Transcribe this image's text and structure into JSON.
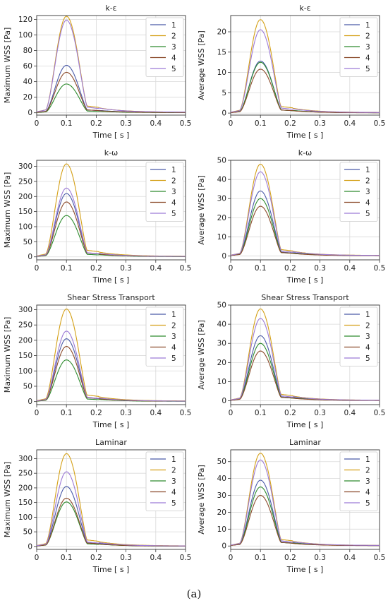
{
  "caption": "(a)",
  "colors": [
    "#4a5aa8",
    "#d4a017",
    "#2e8b2e",
    "#8b4a2a",
    "#9c7ad6"
  ],
  "chart_data": [
    {
      "type": "line",
      "title": "k-ε",
      "xlabel": "Time [ s ]",
      "ylabel": "Maximum WSS [Pa]",
      "xlim": [
        0,
        0.5
      ],
      "ylim": [
        -3,
        125
      ],
      "xticks": [
        0,
        0.1,
        0.2,
        0.3,
        0.4,
        0.5
      ],
      "yticks": [
        0,
        20,
        40,
        60,
        80,
        100,
        120
      ],
      "grid": true,
      "legend": "top-right",
      "peak_t": 0.1,
      "series": [
        {
          "name": "1",
          "peak": 61
        },
        {
          "name": "2",
          "peak": 124
        },
        {
          "name": "3",
          "peak": 37
        },
        {
          "name": "4",
          "peak": 52
        },
        {
          "name": "5",
          "peak": 119
        }
      ]
    },
    {
      "type": "line",
      "title": "k-ε",
      "xlabel": "Time [ s ]",
      "ylabel": "Average WSS [Pa]",
      "xlim": [
        0,
        0.5
      ],
      "ylim": [
        -0.5,
        24
      ],
      "xticks": [
        0,
        0.1,
        0.2,
        0.3,
        0.4,
        0.5
      ],
      "yticks": [
        0,
        5,
        10,
        15,
        20
      ],
      "grid": true,
      "legend": "top-right",
      "peak_t": 0.1,
      "series": [
        {
          "name": "1",
          "peak": 12.8
        },
        {
          "name": "2",
          "peak": 23
        },
        {
          "name": "3",
          "peak": 12.5
        },
        {
          "name": "4",
          "peak": 10.8
        },
        {
          "name": "5",
          "peak": 20.5
        }
      ]
    },
    {
      "type": "line",
      "title": "k-ω",
      "xlabel": "Time [ s ]",
      "ylabel": "Maximum WSS [Pa]",
      "xlim": [
        0,
        0.5
      ],
      "ylim": [
        -10,
        320
      ],
      "xticks": [
        0,
        0.1,
        0.2,
        0.3,
        0.4,
        0.5
      ],
      "yticks": [
        0,
        50,
        100,
        150,
        200,
        250,
        300
      ],
      "grid": true,
      "legend": "top-right",
      "peak_t": 0.1,
      "series": [
        {
          "name": "1",
          "peak": 210
        },
        {
          "name": "2",
          "peak": 308
        },
        {
          "name": "3",
          "peak": 137
        },
        {
          "name": "4",
          "peak": 182
        },
        {
          "name": "5",
          "peak": 228
        }
      ]
    },
    {
      "type": "line",
      "title": "k-ω",
      "xlabel": "Time [ s ]",
      "ylabel": "Average WSS [Pa]",
      "xlim": [
        0,
        0.5
      ],
      "ylim": [
        -2,
        50
      ],
      "xticks": [
        0,
        0.1,
        0.2,
        0.3,
        0.4,
        0.5
      ],
      "yticks": [
        0,
        10,
        20,
        30,
        40,
        50
      ],
      "grid": true,
      "legend": "top-right",
      "peak_t": 0.1,
      "series": [
        {
          "name": "1",
          "peak": 34
        },
        {
          "name": "2",
          "peak": 48
        },
        {
          "name": "3",
          "peak": 30
        },
        {
          "name": "4",
          "peak": 26
        },
        {
          "name": "5",
          "peak": 44
        }
      ]
    },
    {
      "type": "line",
      "title": "Shear Stress Transport",
      "xlabel": "Time [ s ]",
      "ylabel": "Maximum WSS [Pa]",
      "xlim": [
        0,
        0.5
      ],
      "ylim": [
        -10,
        315
      ],
      "xticks": [
        0,
        0.1,
        0.2,
        0.3,
        0.4,
        0.5
      ],
      "yticks": [
        0,
        50,
        100,
        150,
        200,
        250,
        300
      ],
      "grid": true,
      "legend": "top-right",
      "peak_t": 0.1,
      "series": [
        {
          "name": "1",
          "peak": 205
        },
        {
          "name": "2",
          "peak": 302
        },
        {
          "name": "3",
          "peak": 136
        },
        {
          "name": "4",
          "peak": 180
        },
        {
          "name": "5",
          "peak": 230
        }
      ]
    },
    {
      "type": "line",
      "title": "Shear Stress Transport",
      "xlabel": "Time [ s ]",
      "ylabel": "Average WSS [Pa]",
      "xlim": [
        0,
        0.5
      ],
      "ylim": [
        -2,
        50
      ],
      "xticks": [
        0,
        0.1,
        0.2,
        0.3,
        0.4,
        0.5
      ],
      "yticks": [
        0,
        10,
        20,
        30,
        40,
        50
      ],
      "grid": true,
      "legend": "top-right",
      "peak_t": 0.1,
      "series": [
        {
          "name": "1",
          "peak": 34
        },
        {
          "name": "2",
          "peak": 48
        },
        {
          "name": "3",
          "peak": 30
        },
        {
          "name": "4",
          "peak": 26
        },
        {
          "name": "5",
          "peak": 43
        }
      ]
    },
    {
      "type": "line",
      "title": "Laminar",
      "xlabel": "Time [ s ]",
      "ylabel": "Maximum WSS [Pa]",
      "xlim": [
        0,
        0.5
      ],
      "ylim": [
        -10,
        330
      ],
      "xticks": [
        0,
        0.1,
        0.2,
        0.3,
        0.4,
        0.5
      ],
      "yticks": [
        0,
        50,
        100,
        150,
        200,
        250,
        300
      ],
      "grid": true,
      "legend": "top-right",
      "peak_t": 0.1,
      "series": [
        {
          "name": "1",
          "peak": 205
        },
        {
          "name": "2",
          "peak": 317
        },
        {
          "name": "3",
          "peak": 152
        },
        {
          "name": "4",
          "peak": 165
        },
        {
          "name": "5",
          "peak": 255
        }
      ]
    },
    {
      "type": "line",
      "title": "Laminar",
      "xlabel": "Time [ s ]",
      "ylabel": "Average WSS [Pa]",
      "xlim": [
        0,
        0.5
      ],
      "ylim": [
        -2,
        57
      ],
      "xticks": [
        0,
        0.1,
        0.2,
        0.3,
        0.4,
        0.5
      ],
      "yticks": [
        0,
        10,
        20,
        30,
        40,
        50
      ],
      "grid": true,
      "legend": "top-right",
      "peak_t": 0.1,
      "series": [
        {
          "name": "1",
          "peak": 39
        },
        {
          "name": "2",
          "peak": 55
        },
        {
          "name": "3",
          "peak": 35
        },
        {
          "name": "4",
          "peak": 30
        },
        {
          "name": "5",
          "peak": 51
        }
      ]
    }
  ]
}
